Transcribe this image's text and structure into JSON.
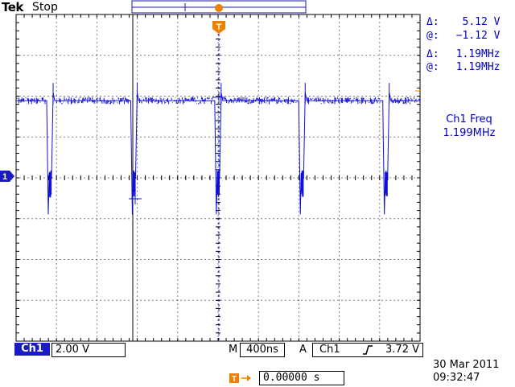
{
  "header": {
    "brand": "Tek",
    "run_state": "Stop"
  },
  "markers": {
    "trigger_marker": "T",
    "channel_marker": "1"
  },
  "cursors": {
    "voltage_delta_label": "Δ:",
    "voltage_delta": "5.12 V",
    "voltage_at_label": "@:",
    "voltage_at": "−1.12 V",
    "freq_delta_label": "Δ:",
    "freq_delta": "1.19MHz",
    "freq_at_label": "@:",
    "freq_at": "1.19MHz"
  },
  "measurement": {
    "label": "Ch1 Freq",
    "value": "1.199MHz"
  },
  "status_bar": {
    "channel": "Ch1",
    "volts_per_div": "2.00 V",
    "timebase_prefix": "M",
    "timebase": "400ns",
    "trigger_prefix": "A",
    "trigger_source": "Ch1",
    "trigger_slope_icon": "rising-edge-icon",
    "trigger_level": "3.72 V",
    "trigger_position_icon": "trigger-position-icon",
    "trigger_position": "0.00000 s",
    "date": "30 Mar  2011",
    "time": "09:32:47"
  },
  "colors": {
    "trace": "#1010d8",
    "accent": "#f08000",
    "text": "#0000c8",
    "grid": "#000000"
  },
  "waveform": {
    "high_level_divisions": 1.85,
    "low_level_divisions": -0.05,
    "period_divisions": 2.08,
    "pulse_width_divisions": 0.12
  }
}
